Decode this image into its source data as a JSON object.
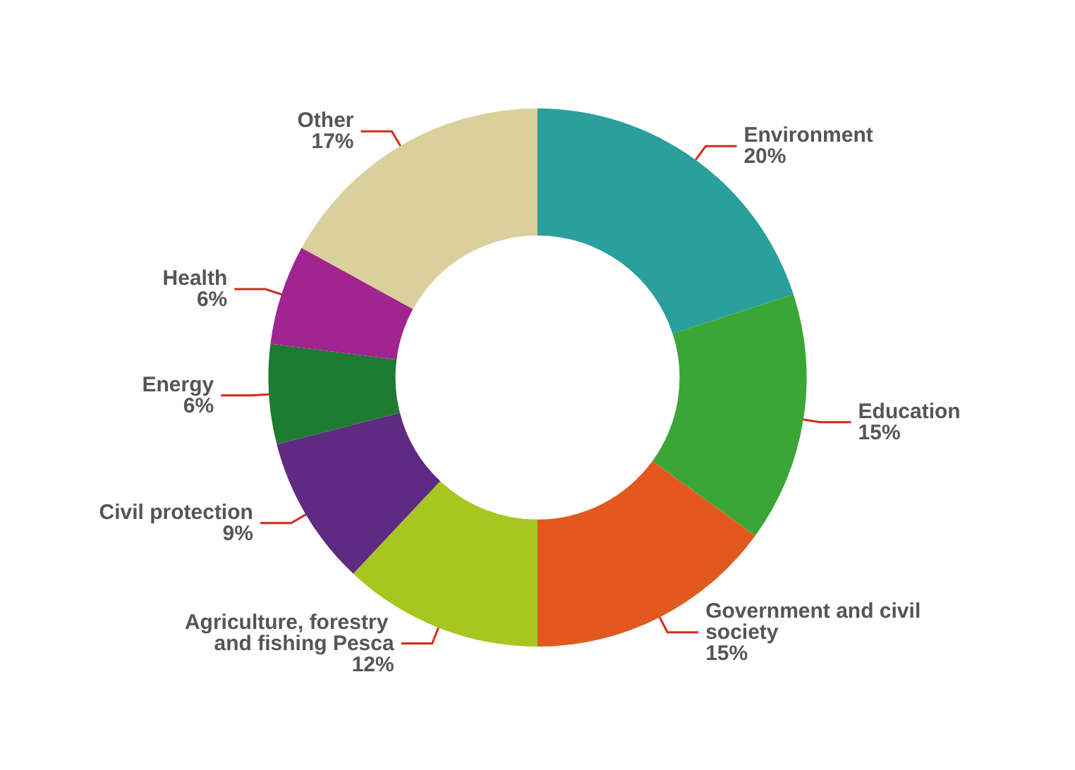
{
  "chart_data": {
    "type": "donut",
    "categories": [
      "Environment",
      "Education",
      "Government and civil society",
      "Agriculture, forestry and fishing Pesca",
      "Civil protection",
      "Energy",
      "Health",
      "Other"
    ],
    "values": [
      20,
      15,
      15,
      12,
      9,
      6,
      6,
      17
    ],
    "value_labels": [
      "20%",
      "15%",
      "15%",
      "12%",
      "9%",
      "6%",
      "6%",
      "17%"
    ],
    "colors": [
      "#2a9f9c",
      "#3aa636",
      "#e2581f",
      "#a7c61f",
      "#5e2a82",
      "#1f7a32",
      "#a02590",
      "#d9d09c"
    ],
    "legend": false
  }
}
